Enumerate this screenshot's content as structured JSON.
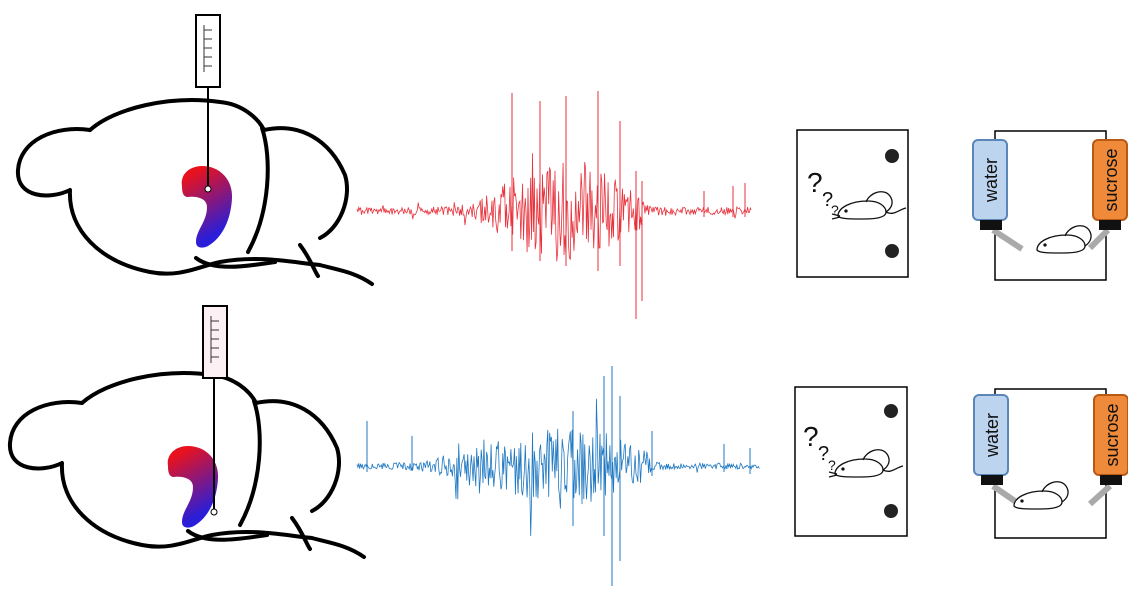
{
  "colors": {
    "trace_top": "#e8323c",
    "trace_bottom": "#1f78c2",
    "region_top": "#e8121e",
    "region_bottom": "#2a1ed8",
    "water_fill": "#bcd4ee",
    "water_stroke": "#5a86b8",
    "sucrose_fill": "#ee8a3a",
    "sucrose_stroke": "#b85a14",
    "probe_top_fill": "#ffffff",
    "probe_bottom_fill": "#fdf0f5",
    "tube": "#aaaaaa"
  },
  "icons": {
    "brain": "brain-sagittal-icon",
    "probe": "silicon-probe-icon",
    "mouse": "mouse-icon",
    "bottle": "drinking-bottle-icon"
  },
  "rows": [
    {
      "id": "top",
      "water_label": "water",
      "sucrose_label": "sucrose",
      "question_marks": [
        "?",
        "?",
        "?"
      ]
    },
    {
      "id": "bottom",
      "water_label": "water",
      "sucrose_label": "sucrose",
      "question_marks": [
        "?",
        "?",
        "?"
      ]
    }
  ]
}
